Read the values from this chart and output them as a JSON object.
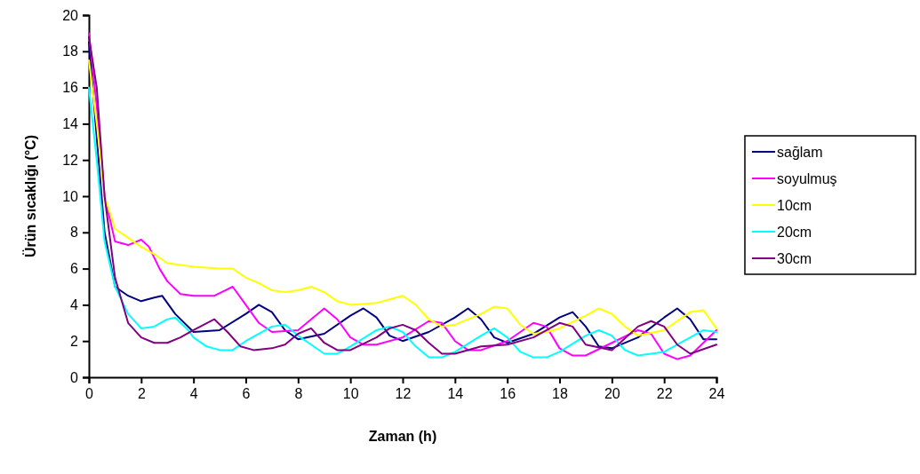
{
  "chart_data": {
    "type": "line",
    "xlabel": "Zaman (h)",
    "ylabel": "Ürün sıcaklığı (°C)",
    "xlim": [
      0,
      24
    ],
    "xticks": [
      0,
      2,
      4,
      6,
      8,
      10,
      12,
      14,
      16,
      18,
      20,
      22,
      24
    ],
    "ylim": [
      0,
      20
    ],
    "yticks": [
      0,
      2,
      4,
      6,
      8,
      10,
      12,
      14,
      16,
      18,
      20
    ],
    "grid": false,
    "legend": "right",
    "marker": "none",
    "line_style": "solid",
    "series": [
      {
        "name": "sağlam",
        "color": "#000080",
        "x": [
          0,
          0.6,
          1,
          1.5,
          2,
          2.5,
          2.8,
          3.3,
          4,
          5,
          6,
          6.5,
          7,
          7.5,
          8,
          9,
          10,
          10.5,
          11,
          11.5,
          12,
          13,
          14,
          14.5,
          15,
          15.5,
          16,
          17,
          18,
          18.5,
          19,
          19.5,
          20,
          21,
          22,
          22.5,
          23,
          23.5,
          24
        ],
        "values": [
          18.5,
          8,
          5,
          4.5,
          4.2,
          4.4,
          4.5,
          3.5,
          2.5,
          2.6,
          3.5,
          4,
          3.6,
          2.6,
          2.1,
          2.4,
          3.4,
          3.8,
          3.3,
          2.3,
          2,
          2.5,
          3.3,
          3.8,
          3.2,
          2.2,
          1.9,
          2.4,
          3.3,
          3.6,
          2.8,
          1.7,
          1.6,
          2.2,
          3.3,
          3.8,
          3.2,
          2.1,
          2.1
        ]
      },
      {
        "name": "soyulmuş",
        "color": "#ff00ff",
        "x": [
          0,
          0.3,
          0.6,
          1,
          1.5,
          2,
          2.3,
          2.7,
          3,
          3.5,
          4,
          4.8,
          5.5,
          6,
          6.5,
          7,
          8,
          8.5,
          9,
          9.5,
          10,
          10.5,
          11,
          12,
          13,
          13.5,
          14,
          14.5,
          15,
          16,
          17,
          17.5,
          18,
          18.5,
          19,
          20,
          21,
          21.5,
          22,
          22.5,
          23,
          24
        ],
        "values": [
          19,
          15,
          10,
          7.5,
          7.3,
          7.6,
          7.2,
          6,
          5.3,
          4.6,
          4.5,
          4.5,
          5,
          4,
          3,
          2.5,
          2.6,
          3.2,
          3.8,
          3.2,
          2.2,
          1.8,
          1.8,
          2.2,
          3.1,
          3,
          2,
          1.5,
          1.5,
          2,
          3,
          2.8,
          1.6,
          1.2,
          1.2,
          1.9,
          2.6,
          2.4,
          1.3,
          1,
          1.2,
          2.6
        ]
      },
      {
        "name": "10cm",
        "color": "#ffff00",
        "x": [
          0,
          0.3,
          0.6,
          1,
          1.5,
          2,
          2.5,
          3,
          4,
          5,
          5.5,
          6,
          6.5,
          7,
          7.5,
          8,
          8.5,
          9,
          9.5,
          10,
          11,
          11.5,
          12,
          12.5,
          13,
          13.5,
          14,
          15,
          15.5,
          16,
          16.5,
          17,
          17.5,
          18,
          19,
          19.5,
          20,
          20.5,
          21,
          22,
          23,
          23.5,
          24
        ],
        "values": [
          17.5,
          14,
          10,
          8.2,
          7.7,
          7.2,
          6.8,
          6.3,
          6.1,
          6,
          6,
          5.5,
          5.2,
          4.8,
          4.7,
          4.8,
          5,
          4.7,
          4.2,
          4,
          4.1,
          4.3,
          4.5,
          4,
          3.2,
          2.8,
          2.9,
          3.5,
          3.9,
          3.8,
          2.9,
          2.4,
          2.5,
          2.7,
          3.4,
          3.8,
          3.5,
          2.8,
          2.3,
          2.6,
          3.6,
          3.7,
          2.7
        ]
      },
      {
        "name": "20cm",
        "color": "#00ffff",
        "x": [
          0,
          0.3,
          0.6,
          1,
          1.5,
          2,
          2.5,
          3,
          3.3,
          3.8,
          4,
          4.5,
          5,
          5.5,
          6,
          7,
          7.5,
          8,
          8.5,
          9,
          9.5,
          10,
          11,
          11.5,
          12,
          12.5,
          13,
          13.5,
          14,
          15,
          15.5,
          16,
          16.5,
          17,
          17.5,
          18,
          19,
          19.5,
          20,
          20.5,
          21,
          22,
          23,
          23.5,
          24
        ],
        "values": [
          16,
          12,
          7.5,
          5,
          3.5,
          2.7,
          2.8,
          3.2,
          3.3,
          2.6,
          2.2,
          1.7,
          1.5,
          1.5,
          2,
          2.8,
          2.9,
          2.3,
          1.8,
          1.3,
          1.3,
          1.7,
          2.6,
          2.8,
          2.5,
          1.7,
          1.1,
          1.1,
          1.4,
          2.3,
          2.7,
          2.2,
          1.4,
          1.1,
          1.1,
          1.4,
          2.3,
          2.6,
          2.3,
          1.5,
          1.2,
          1.4,
          2.2,
          2.6,
          2.5
        ]
      },
      {
        "name": "30cm",
        "color": "#800080",
        "x": [
          0,
          0.3,
          0.6,
          1,
          1.5,
          2,
          2.5,
          3,
          3.5,
          4,
          4.8,
          5.3,
          5.8,
          6.3,
          7,
          7.5,
          8,
          8.5,
          9,
          9.5,
          10,
          11,
          11.5,
          12,
          12.5,
          13,
          13.5,
          14,
          15,
          16,
          17,
          18,
          18.5,
          19,
          20,
          21,
          21.5,
          22,
          22.5,
          23,
          24
        ],
        "values": [
          18.8,
          16,
          10,
          5.5,
          3,
          2.2,
          1.9,
          1.9,
          2.2,
          2.6,
          3.2,
          2.5,
          1.7,
          1.5,
          1.6,
          1.8,
          2.4,
          2.7,
          1.9,
          1.5,
          1.5,
          2.2,
          2.7,
          2.9,
          2.6,
          1.9,
          1.3,
          1.3,
          1.7,
          1.8,
          2.2,
          3,
          2.8,
          1.8,
          1.5,
          2.8,
          3.1,
          2.8,
          1.8,
          1.3,
          1.8
        ]
      }
    ]
  }
}
